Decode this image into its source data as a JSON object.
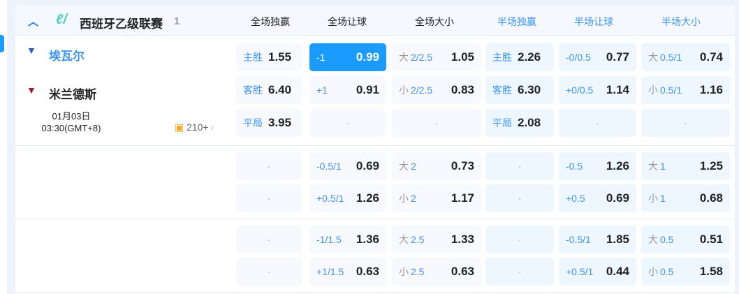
{
  "league": {
    "name": "西班牙乙级联赛",
    "count": "1",
    "logo": "league-logo"
  },
  "columns": [
    {
      "label": "全场独赢",
      "color": "#222222"
    },
    {
      "label": "全场让球",
      "color": "#222222"
    },
    {
      "label": "全场大小",
      "color": "#222222"
    },
    {
      "label": "半场独赢",
      "color": "#3d95f0"
    },
    {
      "label": "半场让球",
      "color": "#3d95f0"
    },
    {
      "label": "半场大小",
      "color": "#3d95f0"
    }
  ],
  "match": {
    "home": {
      "name": "埃瓦尔",
      "color": "#3d95f0"
    },
    "away": {
      "name": "米兰德斯",
      "color": "#222222"
    },
    "date": "01月03日",
    "time": "03:30(GMT+8)",
    "more_markets": "210+"
  },
  "accent": "#1a9cff",
  "blocks": [
    {
      "rows": [
        [
          {
            "label": "主胜",
            "val": "1.55"
          },
          {
            "label": "-1",
            "val": "0.99",
            "selected": true
          },
          {
            "pre": "大",
            "label": "2/2.5",
            "val": "1.05"
          },
          {
            "label": "主胜",
            "val": "2.26"
          },
          {
            "label": "-0/0.5",
            "val": "0.77"
          },
          {
            "pre": "大",
            "label": "0.5/1",
            "val": "0.74"
          }
        ],
        [
          {
            "label": "客胜",
            "val": "6.40"
          },
          {
            "label": "+1",
            "val": "0.91"
          },
          {
            "pre": "小",
            "label": "2/2.5",
            "val": "0.83"
          },
          {
            "label": "客胜",
            "val": "6.30"
          },
          {
            "label": "+0/0.5",
            "val": "1.14"
          },
          {
            "pre": "小",
            "label": "0.5/1",
            "val": "1.16"
          }
        ],
        [
          {
            "label": "平局",
            "val": "3.95"
          },
          {
            "empty": "-"
          },
          {
            "empty": "-"
          },
          {
            "label": "平局",
            "val": "2.08"
          },
          {
            "empty": "-"
          },
          {
            "empty": "-"
          }
        ]
      ]
    },
    {
      "rows": [
        [
          {
            "empty": "-"
          },
          {
            "label": "-0.5/1",
            "val": "0.69"
          },
          {
            "pre": "大",
            "label": "2",
            "val": "0.73"
          },
          {
            "empty": "-"
          },
          {
            "label": "-0.5",
            "val": "1.26"
          },
          {
            "pre": "大",
            "label": "1",
            "val": "1.25"
          }
        ],
        [
          {
            "empty": "-"
          },
          {
            "label": "+0.5/1",
            "val": "1.26"
          },
          {
            "pre": "小",
            "label": "2",
            "val": "1.17"
          },
          {
            "empty": "-"
          },
          {
            "label": "+0.5",
            "val": "0.69"
          },
          {
            "pre": "小",
            "label": "1",
            "val": "0.68"
          }
        ]
      ]
    },
    {
      "rows": [
        [
          {
            "empty": "-"
          },
          {
            "label": "-1/1.5",
            "val": "1.36"
          },
          {
            "pre": "大",
            "label": "2.5",
            "val": "1.33"
          },
          {
            "empty": "-"
          },
          {
            "label": "-0.5/1",
            "val": "1.85"
          },
          {
            "pre": "大",
            "label": "0.5",
            "val": "0.51"
          }
        ],
        [
          {
            "empty": "-"
          },
          {
            "label": "+1/1.5",
            "val": "0.63"
          },
          {
            "pre": "小",
            "label": "2.5",
            "val": "0.63"
          },
          {
            "empty": "-"
          },
          {
            "label": "+0.5/1",
            "val": "0.44"
          },
          {
            "pre": "小",
            "label": "0.5",
            "val": "1.58"
          }
        ]
      ]
    }
  ]
}
